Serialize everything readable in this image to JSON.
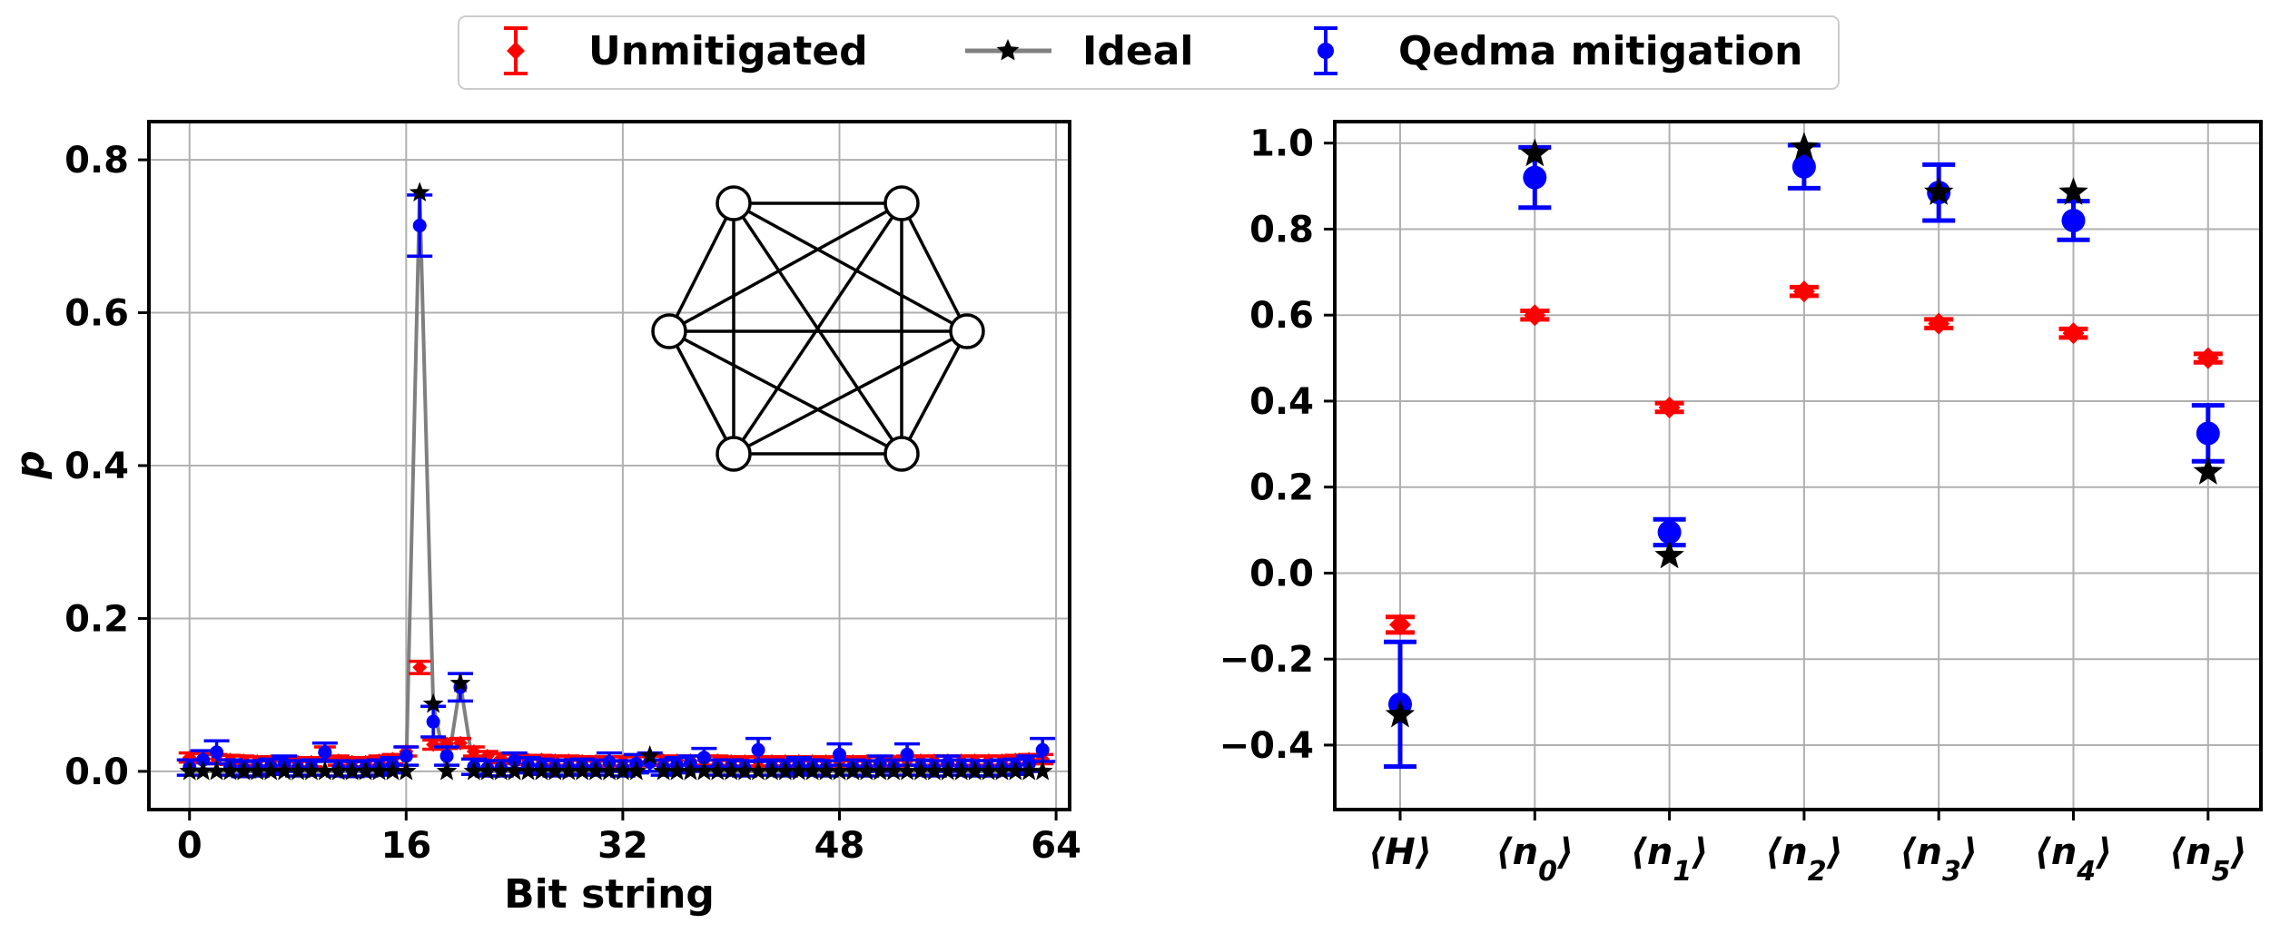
{
  "legend": {
    "placement": "top-center",
    "entries": [
      {
        "label": "Unmitigated",
        "color": "#ff0000",
        "marker": "diamond",
        "style": "errorbar"
      },
      {
        "label": "Ideal",
        "color": "#000000",
        "line_color": "#808080",
        "marker": "star",
        "style": "line"
      },
      {
        "label": "Qedma mitigation",
        "color": "#0000ff",
        "marker": "circle",
        "style": "errorbar"
      }
    ]
  },
  "colors": {
    "unmitigated": "#ff0000",
    "ideal_marker": "#000000",
    "ideal_line": "#808080",
    "mitigated": "#0000ff",
    "grid": "#b0b0b0"
  },
  "chart_data": [
    {
      "type": "line",
      "xlabel": "Bit string",
      "ylabel": "p",
      "xlim": [
        -3,
        65
      ],
      "ylim": [
        -0.05,
        0.85
      ],
      "xticks": [
        "0",
        "16",
        "32",
        "48",
        "64"
      ],
      "yticks": [
        "0.0",
        "0.2",
        "0.4",
        "0.6",
        "0.8"
      ],
      "grid": true,
      "inset": "complete graph on 6 nodes (hexagon)",
      "x": [
        0,
        1,
        2,
        3,
        4,
        5,
        6,
        7,
        8,
        9,
        10,
        11,
        12,
        13,
        14,
        15,
        16,
        17,
        18,
        19,
        20,
        21,
        22,
        23,
        24,
        25,
        26,
        27,
        28,
        29,
        30,
        31,
        32,
        33,
        34,
        35,
        36,
        37,
        38,
        39,
        40,
        41,
        42,
        43,
        44,
        45,
        46,
        47,
        48,
        49,
        50,
        51,
        52,
        53,
        54,
        55,
        56,
        57,
        58,
        59,
        60,
        61,
        62,
        63
      ],
      "series": [
        {
          "name": "Ideal",
          "values": [
            0,
            0,
            0,
            0,
            0,
            0,
            0,
            0,
            0,
            0,
            0,
            0,
            0,
            0,
            0,
            0,
            0,
            0.757,
            0.088,
            0,
            0.115,
            0,
            0,
            0,
            0,
            0,
            0,
            0,
            0,
            0,
            0,
            0,
            0,
            0,
            0.02,
            0,
            0,
            0,
            0,
            0,
            0,
            0,
            0,
            0,
            0,
            0,
            0,
            0,
            0,
            0,
            0,
            0,
            0,
            0,
            0,
            0,
            0,
            0,
            0,
            0,
            0,
            0,
            0,
            0
          ]
        },
        {
          "name": "Unmitigated",
          "values": [
            0.018,
            0.017,
            0.016,
            0.015,
            0.014,
            0.013,
            0.013,
            0.012,
            0.012,
            0.012,
            0.024,
            0.014,
            0.012,
            0.012,
            0.014,
            0.016,
            0.026,
            0.136,
            0.035,
            0.036,
            0.037,
            0.026,
            0.02,
            0.017,
            0.016,
            0.015,
            0.015,
            0.014,
            0.014,
            0.013,
            0.013,
            0.013,
            0.013,
            0.013,
            0.014,
            0.014,
            0.014,
            0.014,
            0.014,
            0.014,
            0.013,
            0.013,
            0.013,
            0.013,
            0.013,
            0.013,
            0.013,
            0.013,
            0.013,
            0.013,
            0.013,
            0.013,
            0.013,
            0.014,
            0.014,
            0.014,
            0.014,
            0.014,
            0.014,
            0.014,
            0.014,
            0.015,
            0.016,
            0.016
          ],
          "errors": [
            0.006,
            0.006,
            0.006,
            0.006,
            0.006,
            0.006,
            0.006,
            0.006,
            0.006,
            0.006,
            0.008,
            0.006,
            0.006,
            0.006,
            0.006,
            0.006,
            0.006,
            0.008,
            0.006,
            0.006,
            0.006,
            0.006,
            0.006,
            0.006,
            0.006,
            0.006,
            0.006,
            0.006,
            0.006,
            0.006,
            0.006,
            0.006,
            0.006,
            0.006,
            0.006,
            0.006,
            0.006,
            0.006,
            0.006,
            0.006,
            0.006,
            0.006,
            0.006,
            0.006,
            0.006,
            0.006,
            0.006,
            0.006,
            0.006,
            0.006,
            0.006,
            0.006,
            0.006,
            0.006,
            0.006,
            0.006,
            0.006,
            0.006,
            0.006,
            0.006,
            0.006,
            0.006,
            0.006,
            0.006
          ]
        },
        {
          "name": "Qedma mitigation",
          "values": [
            0.005,
            0.015,
            0.025,
            0.005,
            0.003,
            0.004,
            0.006,
            0.01,
            0.004,
            0.005,
            0.025,
            0.004,
            0.003,
            0.004,
            0.005,
            0.008,
            0.02,
            0.714,
            0.065,
            0.02,
            0.11,
            0.006,
            0.004,
            0.004,
            0.014,
            0.008,
            0.006,
            0.004,
            0.005,
            0.006,
            0.005,
            0.012,
            0.004,
            0.01,
            0.012,
            0.005,
            0.008,
            0.01,
            0.018,
            0.005,
            0.005,
            0.004,
            0.028,
            0.005,
            0.004,
            0.008,
            0.005,
            0.004,
            0.022,
            0.005,
            0.004,
            0.01,
            0.005,
            0.022,
            0.005,
            0.004,
            0.01,
            0.005,
            0.004,
            0.004,
            0.005,
            0.006,
            0.01,
            0.028
          ],
          "errors": [
            0.01,
            0.012,
            0.015,
            0.01,
            0.01,
            0.01,
            0.01,
            0.01,
            0.01,
            0.01,
            0.012,
            0.01,
            0.01,
            0.01,
            0.01,
            0.01,
            0.012,
            0.04,
            0.02,
            0.012,
            0.018,
            0.01,
            0.01,
            0.01,
            0.01,
            0.01,
            0.01,
            0.01,
            0.01,
            0.01,
            0.01,
            0.012,
            0.01,
            0.012,
            0.012,
            0.01,
            0.01,
            0.01,
            0.012,
            0.01,
            0.01,
            0.01,
            0.015,
            0.01,
            0.01,
            0.01,
            0.01,
            0.01,
            0.014,
            0.01,
            0.01,
            0.01,
            0.01,
            0.014,
            0.01,
            0.01,
            0.01,
            0.01,
            0.01,
            0.01,
            0.01,
            0.01,
            0.01,
            0.015
          ]
        }
      ]
    },
    {
      "type": "scatter",
      "xlabel": "",
      "ylabel": "",
      "ylim": [
        -0.55,
        1.05
      ],
      "yticks": [
        "1.0",
        "0.8",
        "0.6",
        "0.4",
        "0.2",
        "0.0",
        "−0.2",
        "−0.4"
      ],
      "grid": true,
      "categories": [
        "⟨H⟩",
        "⟨n0⟩",
        "⟨n1⟩",
        "⟨n2⟩",
        "⟨n3⟩",
        "⟨n4⟩",
        "⟨n5⟩"
      ],
      "series": [
        {
          "name": "Unmitigated",
          "values": [
            -0.12,
            0.6,
            0.385,
            0.655,
            0.58,
            0.558,
            0.5
          ],
          "errors": [
            0.018,
            0.01,
            0.01,
            0.01,
            0.01,
            0.01,
            0.01
          ]
        },
        {
          "name": "Ideal",
          "values": [
            -0.33,
            0.975,
            0.04,
            0.99,
            0.885,
            0.885,
            0.235
          ]
        },
        {
          "name": "Qedma mitigation",
          "values": [
            -0.305,
            0.92,
            0.095,
            0.945,
            0.885,
            0.82,
            0.325
          ],
          "errors": [
            0.145,
            0.07,
            0.03,
            0.05,
            0.065,
            0.045,
            0.065
          ]
        }
      ]
    }
  ]
}
